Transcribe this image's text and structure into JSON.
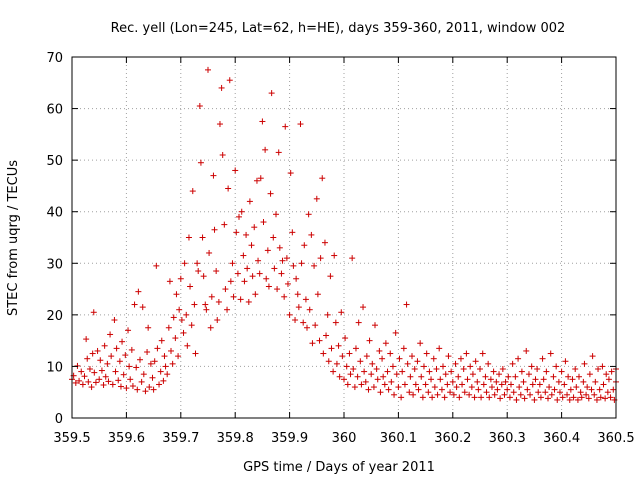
{
  "chart_data": {
    "type": "scatter",
    "title": "Rec. yell (Lon=245, Lat=62, h=HE), days 359-360, 2011, window 002",
    "xlabel": "GPS time / Days of year 2011",
    "ylabel": "STEC from uqrg / TECUs",
    "xlim": [
      359.5,
      360.5
    ],
    "ylim": [
      0,
      70
    ],
    "x_ticks": [
      "359.5",
      "359.6",
      "359.7",
      "359.8",
      "359.9",
      "360",
      "360.1",
      "360.2",
      "360.3",
      "360.4",
      "360.5"
    ],
    "y_ticks": [
      "0",
      "10",
      "20",
      "30",
      "40",
      "50",
      "60",
      "70"
    ],
    "grid": true,
    "marker": "+",
    "colors": {
      "points": "#cc0000",
      "grid": "#a0a0a0",
      "axes": "#000000"
    },
    "points": [
      [
        359.5,
        7.5
      ],
      [
        359.503,
        8.2
      ],
      [
        359.507,
        6.8
      ],
      [
        359.51,
        10.1
      ],
      [
        359.513,
        7.2
      ],
      [
        359.517,
        9.0
      ],
      [
        359.52,
        6.5
      ],
      [
        359.523,
        8.1
      ],
      [
        359.526,
        15.3
      ],
      [
        359.528,
        11.5
      ],
      [
        359.53,
        7.0
      ],
      [
        359.533,
        9.5
      ],
      [
        359.536,
        6.0
      ],
      [
        359.538,
        12.5
      ],
      [
        359.54,
        20.5
      ],
      [
        359.541,
        8.8
      ],
      [
        359.544,
        6.9
      ],
      [
        359.547,
        13.0
      ],
      [
        359.55,
        7.5
      ],
      [
        359.552,
        11.2
      ],
      [
        359.555,
        9.2
      ],
      [
        359.558,
        6.4
      ],
      [
        359.56,
        14.0
      ],
      [
        359.562,
        8.0
      ],
      [
        359.565,
        10.5
      ],
      [
        359.567,
        7.1
      ],
      [
        359.57,
        16.2
      ],
      [
        359.572,
        12.0
      ],
      [
        359.575,
        6.5
      ],
      [
        359.578,
        19.0
      ],
      [
        359.58,
        9.0
      ],
      [
        359.582,
        13.5
      ],
      [
        359.585,
        7.3
      ],
      [
        359.588,
        11.0
      ],
      [
        359.59,
        6.1
      ],
      [
        359.592,
        14.8
      ],
      [
        359.595,
        8.4
      ],
      [
        359.598,
        12.2
      ],
      [
        359.6,
        5.8
      ],
      [
        359.603,
        17.0
      ],
      [
        359.605,
        10.0
      ],
      [
        359.607,
        7.5
      ],
      [
        359.61,
        13.2
      ],
      [
        359.612,
        6.2
      ],
      [
        359.615,
        22.0
      ],
      [
        359.618,
        9.8
      ],
      [
        359.62,
        5.5
      ],
      [
        359.622,
        24.5
      ],
      [
        359.625,
        11.3
      ],
      [
        359.628,
        7.0
      ],
      [
        359.63,
        21.5
      ],
      [
        359.632,
        8.5
      ],
      [
        359.635,
        5.2
      ],
      [
        359.638,
        12.8
      ],
      [
        359.64,
        17.5
      ],
      [
        359.642,
        6.0
      ],
      [
        359.645,
        10.5
      ],
      [
        359.648,
        7.8
      ],
      [
        359.65,
        5.5
      ],
      [
        359.652,
        11.0
      ],
      [
        359.655,
        29.5
      ],
      [
        359.657,
        13.5
      ],
      [
        359.66,
        6.5
      ],
      [
        359.663,
        9.0
      ],
      [
        359.665,
        15.0
      ],
      [
        359.668,
        7.2
      ],
      [
        359.67,
        12.0
      ],
      [
        359.672,
        10.0
      ],
      [
        359.675,
        8.5
      ],
      [
        359.678,
        17.5
      ],
      [
        359.68,
        26.5
      ],
      [
        359.682,
        13.0
      ],
      [
        359.685,
        10.5
      ],
      [
        359.687,
        19.5
      ],
      [
        359.69,
        15.5
      ],
      [
        359.692,
        24.0
      ],
      [
        359.695,
        12.0
      ],
      [
        359.697,
        21.0
      ],
      [
        359.7,
        27.0
      ],
      [
        359.702,
        19.0
      ],
      [
        359.705,
        16.5
      ],
      [
        359.707,
        30.0
      ],
      [
        359.71,
        20.0
      ],
      [
        359.712,
        14.0
      ],
      [
        359.715,
        35.0
      ],
      [
        359.717,
        25.5
      ],
      [
        359.72,
        18.0
      ],
      [
        359.722,
        44.0
      ],
      [
        359.725,
        22.0
      ],
      [
        359.727,
        12.5
      ],
      [
        359.73,
        30.0
      ],
      [
        359.732,
        28.5
      ],
      [
        359.735,
        60.5
      ],
      [
        359.737,
        49.5
      ],
      [
        359.74,
        35.0
      ],
      [
        359.742,
        27.5
      ],
      [
        359.745,
        22.0
      ],
      [
        359.747,
        21.0
      ],
      [
        359.75,
        67.5
      ],
      [
        359.752,
        32.0
      ],
      [
        359.755,
        17.5
      ],
      [
        359.757,
        23.5
      ],
      [
        359.76,
        47.0
      ],
      [
        359.762,
        36.5
      ],
      [
        359.765,
        28.5
      ],
      [
        359.767,
        19.0
      ],
      [
        359.77,
        22.5
      ],
      [
        359.772,
        57.0
      ],
      [
        359.775,
        64.0
      ],
      [
        359.777,
        51.0
      ],
      [
        359.78,
        37.5
      ],
      [
        359.782,
        25.0
      ],
      [
        359.785,
        21.0
      ],
      [
        359.787,
        44.5
      ],
      [
        359.79,
        65.5
      ],
      [
        359.792,
        26.5
      ],
      [
        359.795,
        30.0
      ],
      [
        359.797,
        23.5
      ],
      [
        359.8,
        48.0
      ],
      [
        359.802,
        36.0
      ],
      [
        359.805,
        28.0
      ],
      [
        359.807,
        39.0
      ],
      [
        359.81,
        23.0
      ],
      [
        359.812,
        40.0
      ],
      [
        359.815,
        31.5
      ],
      [
        359.817,
        26.5
      ],
      [
        359.82,
        35.5
      ],
      [
        359.822,
        29.0
      ],
      [
        359.825,
        22.5
      ],
      [
        359.827,
        42.0
      ],
      [
        359.83,
        33.5
      ],
      [
        359.832,
        27.5
      ],
      [
        359.835,
        37.0
      ],
      [
        359.837,
        24.0
      ],
      [
        359.84,
        46.0
      ],
      [
        359.842,
        30.5
      ],
      [
        359.845,
        28.0
      ],
      [
        359.847,
        46.5
      ],
      [
        359.85,
        57.5
      ],
      [
        359.852,
        38.0
      ],
      [
        359.855,
        52.0
      ],
      [
        359.857,
        27.0
      ],
      [
        359.86,
        32.5
      ],
      [
        359.862,
        25.5
      ],
      [
        359.865,
        43.5
      ],
      [
        359.867,
        63.0
      ],
      [
        359.87,
        35.0
      ],
      [
        359.872,
        29.0
      ],
      [
        359.875,
        39.5
      ],
      [
        359.877,
        25.0
      ],
      [
        359.88,
        51.5
      ],
      [
        359.882,
        33.0
      ],
      [
        359.885,
        28.0
      ],
      [
        359.887,
        30.5
      ],
      [
        359.89,
        23.5
      ],
      [
        359.892,
        56.5
      ],
      [
        359.895,
        31.0
      ],
      [
        359.897,
        26.0
      ],
      [
        359.9,
        20.0
      ],
      [
        359.902,
        47.5
      ],
      [
        359.905,
        36.0
      ],
      [
        359.907,
        29.5
      ],
      [
        359.91,
        19.0
      ],
      [
        359.912,
        27.0
      ],
      [
        359.915,
        24.0
      ],
      [
        359.917,
        21.5
      ],
      [
        359.92,
        57.0
      ],
      [
        359.922,
        30.0
      ],
      [
        359.925,
        18.5
      ],
      [
        359.927,
        33.5
      ],
      [
        359.93,
        23.0
      ],
      [
        359.932,
        17.5
      ],
      [
        359.935,
        39.5
      ],
      [
        359.937,
        21.0
      ],
      [
        359.94,
        35.5
      ],
      [
        359.942,
        14.5
      ],
      [
        359.945,
        29.5
      ],
      [
        359.947,
        18.0
      ],
      [
        359.95,
        42.5
      ],
      [
        359.952,
        24.0
      ],
      [
        359.955,
        15.0
      ],
      [
        359.957,
        31.0
      ],
      [
        359.96,
        46.5
      ],
      [
        359.962,
        12.5
      ],
      [
        359.965,
        34.0
      ],
      [
        359.967,
        16.0
      ],
      [
        359.97,
        20.0
      ],
      [
        359.972,
        11.0
      ],
      [
        359.975,
        27.5
      ],
      [
        359.977,
        13.5
      ],
      [
        359.98,
        9.0
      ],
      [
        359.982,
        31.5
      ],
      [
        359.985,
        18.5
      ],
      [
        359.987,
        10.5
      ],
      [
        359.99,
        14.0
      ],
      [
        359.992,
        8.0
      ],
      [
        359.995,
        20.5
      ],
      [
        359.997,
        12.0
      ],
      [
        360.0,
        7.5
      ],
      [
        360.002,
        15.5
      ],
      [
        360.005,
        10.0
      ],
      [
        360.007,
        6.5
      ],
      [
        360.01,
        12.5
      ],
      [
        360.012,
        8.5
      ],
      [
        360.015,
        31.0
      ],
      [
        360.017,
        9.5
      ],
      [
        360.02,
        6.0
      ],
      [
        360.022,
        13.5
      ],
      [
        360.025,
        8.0
      ],
      [
        360.027,
        18.5
      ],
      [
        360.03,
        11.0
      ],
      [
        360.032,
        6.5
      ],
      [
        360.035,
        21.5
      ],
      [
        360.037,
        9.0
      ],
      [
        360.04,
        7.0
      ],
      [
        360.042,
        12.0
      ],
      [
        360.045,
        5.5
      ],
      [
        360.047,
        15.0
      ],
      [
        360.05,
        8.5
      ],
      [
        360.052,
        10.5
      ],
      [
        360.055,
        6.0
      ],
      [
        360.057,
        18.0
      ],
      [
        360.06,
        9.5
      ],
      [
        360.062,
        7.5
      ],
      [
        360.065,
        13.0
      ],
      [
        360.067,
        5.0
      ],
      [
        360.07,
        11.5
      ],
      [
        360.072,
        8.0
      ],
      [
        360.075,
        6.5
      ],
      [
        360.077,
        14.5
      ],
      [
        360.08,
        9.0
      ],
      [
        360.082,
        5.5
      ],
      [
        360.085,
        12.5
      ],
      [
        360.087,
        7.0
      ],
      [
        360.09,
        10.0
      ],
      [
        360.092,
        4.5
      ],
      [
        360.095,
        16.5
      ],
      [
        360.097,
        8.5
      ],
      [
        360.1,
        6.0
      ],
      [
        360.102,
        11.5
      ],
      [
        360.105,
        4.0
      ],
      [
        360.107,
        9.0
      ],
      [
        360.11,
        13.5
      ],
      [
        360.112,
        6.5
      ],
      [
        360.115,
        22.0
      ],
      [
        360.117,
        10.5
      ],
      [
        360.12,
        5.0
      ],
      [
        360.122,
        8.0
      ],
      [
        360.125,
        12.0
      ],
      [
        360.127,
        4.5
      ],
      [
        360.13,
        9.5
      ],
      [
        360.132,
        6.5
      ],
      [
        360.135,
        11.0
      ],
      [
        360.137,
        5.5
      ],
      [
        360.14,
        14.5
      ],
      [
        360.142,
        8.0
      ],
      [
        360.145,
        4.0
      ],
      [
        360.147,
        10.0
      ],
      [
        360.15,
        6.5
      ],
      [
        360.152,
        12.5
      ],
      [
        360.155,
        5.0
      ],
      [
        360.157,
        9.0
      ],
      [
        360.16,
        7.5
      ],
      [
        360.162,
        4.0
      ],
      [
        360.165,
        11.5
      ],
      [
        360.167,
        6.0
      ],
      [
        360.17,
        9.5
      ],
      [
        360.172,
        4.5
      ],
      [
        360.175,
        13.5
      ],
      [
        360.177,
        7.5
      ],
      [
        360.18,
        5.5
      ],
      [
        360.182,
        10.0
      ],
      [
        360.185,
        4.0
      ],
      [
        360.187,
        8.5
      ],
      [
        360.19,
        6.5
      ],
      [
        360.192,
        12.0
      ],
      [
        360.195,
        5.0
      ],
      [
        360.197,
        9.0
      ],
      [
        360.2,
        7.0
      ],
      [
        360.202,
        4.5
      ],
      [
        360.205,
        10.5
      ],
      [
        360.207,
        6.0
      ],
      [
        360.21,
        8.0
      ],
      [
        360.212,
        4.0
      ],
      [
        360.215,
        11.5
      ],
      [
        360.217,
        6.5
      ],
      [
        360.22,
        9.5
      ],
      [
        360.222,
        5.0
      ],
      [
        360.225,
        12.5
      ],
      [
        360.227,
        7.5
      ],
      [
        360.23,
        4.5
      ],
      [
        360.232,
        10.0
      ],
      [
        360.235,
        6.0
      ],
      [
        360.237,
        8.5
      ],
      [
        360.24,
        4.0
      ],
      [
        360.242,
        11.0
      ],
      [
        360.245,
        7.0
      ],
      [
        360.247,
        5.5
      ],
      [
        360.25,
        9.5
      ],
      [
        360.252,
        4.0
      ],
      [
        360.255,
        12.5
      ],
      [
        360.257,
        6.5
      ],
      [
        360.26,
        8.0
      ],
      [
        360.262,
        5.0
      ],
      [
        360.265,
        10.5
      ],
      [
        360.267,
        4.0
      ],
      [
        360.27,
        7.5
      ],
      [
        360.272,
        6.0
      ],
      [
        360.275,
        9.0
      ],
      [
        360.277,
        4.5
      ],
      [
        360.28,
        7.0
      ],
      [
        360.282,
        5.5
      ],
      [
        360.285,
        8.5
      ],
      [
        360.287,
        3.8
      ],
      [
        360.29,
        6.5
      ],
      [
        360.292,
        9.5
      ],
      [
        360.295,
        4.5
      ],
      [
        360.297,
        7.0
      ],
      [
        360.3,
        5.5
      ],
      [
        360.302,
        8.0
      ],
      [
        360.305,
        4.0
      ],
      [
        360.307,
        6.5
      ],
      [
        360.31,
        10.5
      ],
      [
        360.312,
        5.0
      ],
      [
        360.315,
        8.0
      ],
      [
        360.317,
        3.5
      ],
      [
        360.32,
        11.5
      ],
      [
        360.322,
        6.0
      ],
      [
        360.325,
        4.5
      ],
      [
        360.327,
        9.0
      ],
      [
        360.33,
        7.0
      ],
      [
        360.332,
        3.8
      ],
      [
        360.335,
        13.0
      ],
      [
        360.337,
        5.5
      ],
      [
        360.34,
        8.5
      ],
      [
        360.342,
        4.5
      ],
      [
        360.345,
        10.0
      ],
      [
        360.347,
        6.5
      ],
      [
        360.35,
        3.5
      ],
      [
        360.352,
        7.5
      ],
      [
        360.355,
        9.5
      ],
      [
        360.357,
        5.0
      ],
      [
        360.36,
        6.5
      ],
      [
        360.362,
        4.0
      ],
      [
        360.365,
        11.5
      ],
      [
        360.367,
        7.5
      ],
      [
        360.37,
        5.0
      ],
      [
        360.372,
        9.0
      ],
      [
        360.375,
        3.8
      ],
      [
        360.377,
        6.0
      ],
      [
        360.38,
        12.5
      ],
      [
        360.382,
        4.5
      ],
      [
        360.385,
        8.0
      ],
      [
        360.387,
        5.5
      ],
      [
        360.39,
        10.0
      ],
      [
        360.392,
        3.5
      ],
      [
        360.395,
        7.0
      ],
      [
        360.397,
        5.0
      ],
      [
        360.4,
        9.0
      ],
      [
        360.402,
        4.0
      ],
      [
        360.405,
        6.5
      ],
      [
        360.407,
        11.0
      ],
      [
        360.41,
        4.5
      ],
      [
        360.412,
        8.0
      ],
      [
        360.415,
        3.5
      ],
      [
        360.417,
        5.5
      ],
      [
        360.42,
        7.5
      ],
      [
        360.422,
        4.0
      ],
      [
        360.425,
        9.5
      ],
      [
        360.427,
        6.0
      ],
      [
        360.43,
        3.5
      ],
      [
        360.432,
        8.0
      ],
      [
        360.435,
        5.0
      ],
      [
        360.437,
        4.0
      ],
      [
        360.44,
        7.0
      ],
      [
        360.442,
        10.5
      ],
      [
        360.445,
        4.5
      ],
      [
        360.447,
        6.0
      ],
      [
        360.45,
        3.8
      ],
      [
        360.452,
        8.5
      ],
      [
        360.455,
        5.5
      ],
      [
        360.457,
        12.0
      ],
      [
        360.46,
        4.5
      ],
      [
        360.462,
        7.0
      ],
      [
        360.465,
        3.5
      ],
      [
        360.467,
        9.5
      ],
      [
        360.47,
        5.5
      ],
      [
        360.472,
        4.0
      ],
      [
        360.475,
        10.0
      ],
      [
        360.477,
        6.5
      ],
      [
        360.48,
        3.8
      ],
      [
        360.482,
        8.5
      ],
      [
        360.485,
        5.0
      ],
      [
        360.487,
        7.5
      ],
      [
        360.49,
        4.0
      ],
      [
        360.492,
        9.0
      ],
      [
        360.495,
        5.5
      ],
      [
        360.497,
        3.5
      ],
      [
        360.5,
        7.0
      ],
      [
        360.5,
        9.5
      ]
    ]
  }
}
